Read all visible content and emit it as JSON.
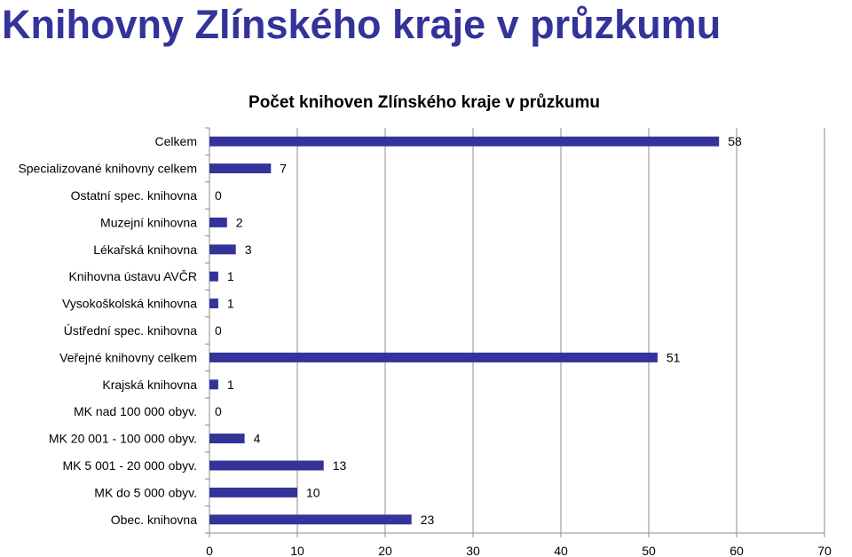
{
  "slide": {
    "title": "Knihovny Zlínského kraje v průzkumu"
  },
  "chart_data": {
    "type": "bar",
    "orientation": "horizontal",
    "title": "Počet knihoven Zlínského kraje v průzkumu",
    "categories": [
      "Celkem",
      "Specializované knihovny celkem",
      "Ostatní spec. knihovna",
      "Muzejní knihovna",
      "Lékařská knihovna",
      "Knihovna ústavu AVČR",
      "Vysokoškolská knihovna",
      "Ústřední spec. knihovna",
      "Veřejné knihovny celkem",
      "Krajská knihovna",
      "MK nad 100 000 obyv.",
      "MK 20 001 - 100 000 obyv.",
      "MK  5 001 - 20 000 obyv.",
      "MK do 5 000 obyv.",
      "Obec. knihovna"
    ],
    "values": [
      58,
      7,
      0,
      2,
      3,
      1,
      1,
      0,
      51,
      1,
      0,
      4,
      13,
      10,
      23
    ],
    "data_labels": [
      "58",
      "7",
      "0",
      "2",
      "3",
      "1",
      "1",
      "0",
      "51",
      "1",
      "0",
      "4",
      "13",
      "10",
      "23"
    ],
    "xlim": [
      0,
      70
    ],
    "x_ticks": [
      "0",
      "10",
      "20",
      "30",
      "40",
      "50",
      "60",
      "70"
    ],
    "grid": true,
    "legend": "none",
    "bar_color": "#33339a",
    "grid_color": "#8c8c8c"
  }
}
